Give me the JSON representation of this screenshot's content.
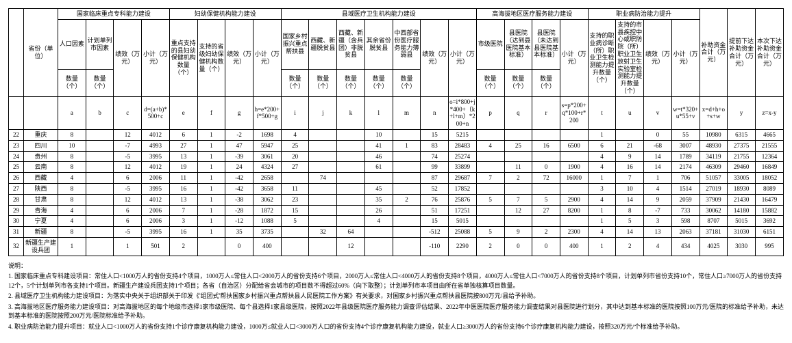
{
  "header": {
    "group1": "国家临床重点专科能力建设",
    "group2": "妇幼保健机构能力建设",
    "group3": "县域医疗卫生机构能力建设",
    "group4": "高海拔地区医疗服务能力建设",
    "group5": "职业病防治能力提升",
    "province": "省份（单位）",
    "pop_factor": "人口因素",
    "plan_city": "计划单列市因素",
    "perf1": "绩效（万元）",
    "subtotal1": "小计（万元）",
    "key_support_maternal": "重点支持的县妇幼保健机构数量（个）",
    "support_prov_maternal": "支持的省级妇幼保健机构数量（个）",
    "perf2": "绩效（万元）",
    "subtotal2": "小计（万元）",
    "rural_revital": "国家乡村振兴重点帮扶县",
    "tibet_xinjiang_pov": "西藏、新疆脱贫县",
    "tibet_xinjiang_corps": "西藏、新疆（含兵团）非脱贫县",
    "other_pov": "其余省份脱贫县",
    "midwest_health": "中西部省份医疗服务能力薄弱县",
    "perf3": "绩效（万元）",
    "subtotal3": "小计（万元）",
    "city_hosp": "市级医院",
    "county_hosp_basic": "县医院（达到县医院基本标准）",
    "county_hosp_nonbasic": "县医院（未达到县医院基本标准）",
    "subtotal4": "小计（万元）",
    "occ_rehab": "支持的职业病诊断（所）职业卫生检测能力提升数量（个）",
    "occ_cdc": "支持的市县疾控中心或职防院（所）职业卫生放射卫生实验室检测能力提升数量（个）",
    "perf5": "绩效（万元）",
    "subtotal5": "小计（万元）",
    "total_subsidy": "补助资金合计（万元）",
    "prev_allocated": "提前下达补助资金合计（万元）",
    "this_allocated": "本次下达补助资金合计（万元）",
    "qty": "数量（个）",
    "formula_d": "d=(a+b)*500+c",
    "formula_h": "h=e*200+f*500+g",
    "formula_o": "o=i*800+j*400+（k+l+m）*200+n",
    "formula_s": "s=p*200+q*100+r*200",
    "formula_w": "w=t*320+u*55+v",
    "formula_x": "x=d+h+o+s+w",
    "formula_z": "z=x-y",
    "cols": [
      "",
      "a",
      "b",
      "c",
      "",
      "e",
      "f",
      "g",
      "",
      "i",
      "j",
      "k",
      "l",
      "m",
      "n",
      "",
      "p",
      "q",
      "r",
      "",
      "t",
      "u",
      "v",
      "",
      "",
      "y",
      ""
    ]
  },
  "rows": [
    {
      "n": "22",
      "p": "重庆",
      "a": "8",
      "b": "",
      "c": "12",
      "d": "4012",
      "e": "6",
      "f": "1",
      "g": "-2",
      "h": "1698",
      "i": "4",
      "j": "",
      "k": "",
      "l": "10",
      "m": "",
      "nn": "15",
      "o": "5215",
      "pp": "",
      "q": "",
      "r": "",
      "s": "",
      "t": "1",
      "u": "",
      "v": "0",
      "w": "55",
      "x": "10980",
      "y": "6315",
      "z": "4665"
    },
    {
      "n": "23",
      "p": "四川",
      "a": "10",
      "b": "",
      "c": "-7",
      "d": "4993",
      "e": "27",
      "f": "1",
      "g": "47",
      "h": "5947",
      "i": "25",
      "j": "",
      "k": "",
      "l": "41",
      "m": "1",
      "nn": "83",
      "o": "28483",
      "pp": "4",
      "q": "25",
      "r": "16",
      "s": "6500",
      "t": "6",
      "u": "21",
      "v": "-68",
      "w": "3007",
      "x": "48930",
      "y": "27375",
      "z": "21555"
    },
    {
      "n": "24",
      "p": "贵州",
      "a": "8",
      "b": "",
      "c": "-5",
      "d": "3995",
      "e": "13",
      "f": "1",
      "g": "-39",
      "h": "3061",
      "i": "20",
      "j": "",
      "k": "",
      "l": "46",
      "m": "",
      "nn": "74",
      "o": "25274",
      "pp": "",
      "q": "",
      "r": "",
      "s": "",
      "t": "4",
      "u": "9",
      "v": "14",
      "w": "1789",
      "x": "34119",
      "y": "21755",
      "z": "12364"
    },
    {
      "n": "25",
      "p": "云南",
      "a": "8",
      "b": "",
      "c": "12",
      "d": "4012",
      "e": "19",
      "f": "1",
      "g": "24",
      "h": "4324",
      "i": "27",
      "j": "",
      "k": "",
      "l": "61",
      "m": "",
      "nn": "99",
      "o": "33899",
      "pp": "",
      "q": "11",
      "r": "0",
      "s": "1900",
      "t": "4",
      "u": "16",
      "v": "14",
      "w": "2174",
      "x": "46309",
      "y": "29460",
      "z": "16849"
    },
    {
      "n": "26",
      "p": "西藏",
      "a": "4",
      "b": "",
      "c": "6",
      "d": "2006",
      "e": "11",
      "f": "1",
      "g": "-42",
      "h": "2658",
      "i": "",
      "j": "74",
      "k": "",
      "l": "",
      "m": "",
      "nn": "87",
      "o": "29687",
      "pp": "7",
      "q": "2",
      "r": "72",
      "s": "16000",
      "t": "1",
      "u": "7",
      "v": "1",
      "w": "706",
      "x": "51057",
      "y": "33005",
      "z": "18052"
    },
    {
      "n": "27",
      "p": "陕西",
      "a": "8",
      "b": "",
      "c": "-5",
      "d": "3995",
      "e": "16",
      "f": "1",
      "g": "-42",
      "h": "3658",
      "i": "11",
      "j": "",
      "k": "",
      "l": "45",
      "m": "",
      "nn": "52",
      "o": "17852",
      "pp": "",
      "q": "",
      "r": "",
      "s": "",
      "t": "3",
      "u": "10",
      "v": "4",
      "w": "1514",
      "x": "27019",
      "y": "18930",
      "z": "8089"
    },
    {
      "n": "28",
      "p": "甘肃",
      "a": "8",
      "b": "",
      "c": "12",
      "d": "4012",
      "e": "13",
      "f": "1",
      "g": "-38",
      "h": "3062",
      "i": "23",
      "j": "",
      "k": "",
      "l": "35",
      "m": "2",
      "nn": "76",
      "o": "25876",
      "pp": "5",
      "q": "7",
      "r": "5",
      "s": "2900",
      "t": "4",
      "u": "14",
      "v": "9",
      "w": "2059",
      "x": "37909",
      "y": "21430",
      "z": "16479"
    },
    {
      "n": "29",
      "p": "青海",
      "a": "4",
      "b": "",
      "c": "6",
      "d": "2006",
      "e": "7",
      "f": "1",
      "g": "-28",
      "h": "1872",
      "i": "15",
      "j": "",
      "k": "",
      "l": "26",
      "m": "",
      "nn": "51",
      "o": "17251",
      "pp": "",
      "q": "12",
      "r": "27",
      "s": "8200",
      "t": "1",
      "u": "8",
      "v": "-7",
      "w": "733",
      "x": "30062",
      "y": "14180",
      "z": "15882"
    },
    {
      "n": "30",
      "p": "宁夏",
      "a": "4",
      "b": "",
      "c": "6",
      "d": "2006",
      "e": "3",
      "f": "1",
      "g": "-12",
      "h": "1088",
      "i": "5",
      "j": "",
      "k": "",
      "l": "4",
      "m": "",
      "nn": "15",
      "o": "5015",
      "pp": "",
      "q": "",
      "r": "",
      "s": "",
      "t": "1",
      "u": "5",
      "v": "3",
      "w": "598",
      "x": "8707",
      "y": "5015",
      "z": "3692"
    },
    {
      "n": "31",
      "p": "新疆",
      "a": "8",
      "b": "",
      "c": "-5",
      "d": "3995",
      "e": "16",
      "f": "1",
      "g": "35",
      "h": "3735",
      "i": "",
      "j": "32",
      "k": "64",
      "l": "",
      "m": "",
      "nn": "-512",
      "o": "25088",
      "pp": "5",
      "q": "9",
      "r": "2",
      "s": "2300",
      "t": "4",
      "u": "14",
      "v": "13",
      "w": "2063",
      "x": "37181",
      "y": "31030",
      "z": "6151"
    },
    {
      "n": "32",
      "p": "新疆生产建设兵团",
      "a": "1",
      "b": "",
      "c": "1",
      "d": "501",
      "e": "2",
      "f": "",
      "g": "0",
      "h": "400",
      "i": "",
      "j": "",
      "k": "12",
      "l": "",
      "m": "",
      "nn": "-110",
      "o": "2290",
      "pp": "2",
      "q": "0",
      "r": "0",
      "s": "400",
      "t": "1",
      "u": "2",
      "v": "4",
      "w": "434",
      "x": "4025",
      "y": "3030",
      "z": "995"
    }
  ],
  "notes": {
    "title": "说明：",
    "l1": "1. 国家临床重点专科建设项目：常住人口<1000万人的省份支持4个项目，1000万人≤常住人口<2000万人的省份支持6个项目，2000万人≤常住人口<4000万人的省份支持8个项目，4000万人≤常住人口<7000万人的省份支持8个项目，计划单列市省份支持10个，常住人口≥7000万人的省份支持12个，5个计划单列市各支持1个项目。新疆生产建设兵团支持1个项目；各省（自治区）分配给省会城市的项目数不得超过60%（向下取整）；计划单列市本项目由所在省单独核算项目数量。",
    "l2": "2. 县域医疗卫生机构能力建设项目：为落实中央关于组织部关于印发《'组团式'帮扶国家乡村振兴重点帮扶县人民医院工作方案》有关要求，对国家乡村振兴重点帮扶县医院按800万元/县给予补助。",
    "l3": "3. 高海拔地区医疗服务能力建设项目：对高海拔地区的每个地级市选择1家市级医院、每个县选择1家县级医院，按照2022年县级医院医疗服务能力调查评估结果、2022年中医医院医疗服务能力调查结果对县医院进行划分，其中达到基本标准的医院按照100万元/医院的标准给予补助，未达到基本标准的医院按照200万元/医院标准给予补助。",
    "l4": "4. 职业病防治能力提升项目：就业人口<1000万人的省份支持1个诊疗康复机构能力建设，1000万≤就业人口<3000万人口的省份支持4个诊疗康复机构能力建设，就业人口≥3000万人的省份支持6个诊疗康复机构能力建设，按照320万元/个标准给予补助。"
  }
}
